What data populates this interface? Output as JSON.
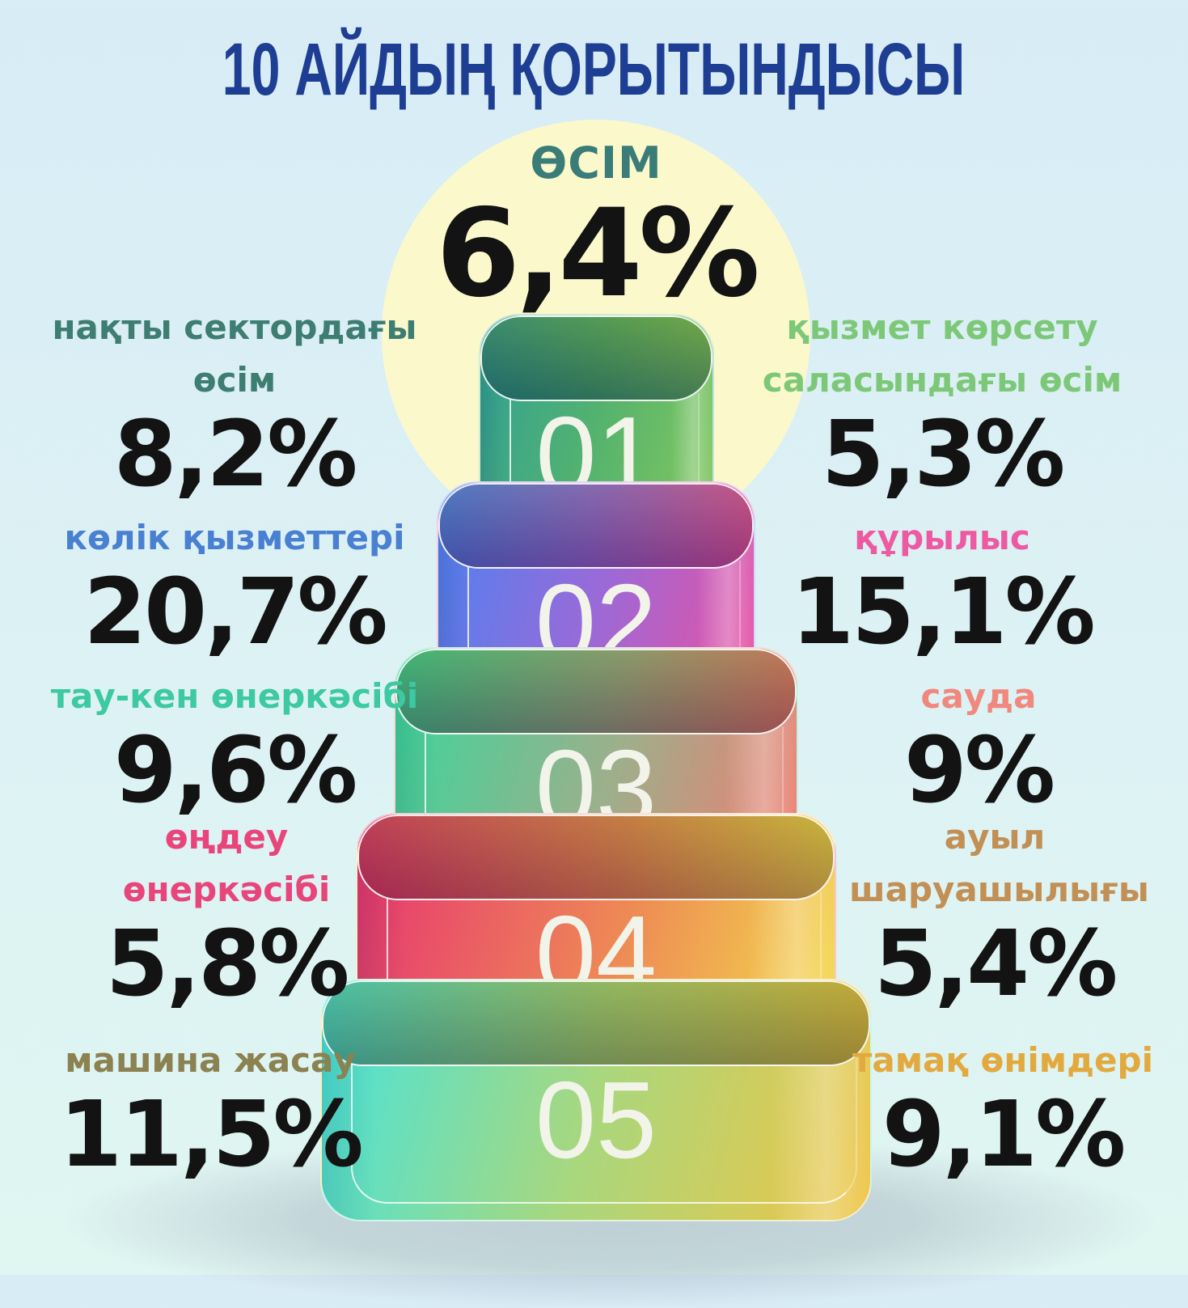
{
  "title": "10 АЙДЫҢ ҚОРЫТЫНДЫСЫ",
  "center_stat": {
    "label": "ӨСІМ",
    "value": "6,4%",
    "label_color": "#3A7D78"
  },
  "left_stats": [
    {
      "label": "нақты сектордағы өсім",
      "value": "8,2%",
      "color": "#3E7D72"
    },
    {
      "label": "көлік қызметтері",
      "value": "20,7%",
      "color": "#4A80D2"
    },
    {
      "label": "тау-кен өнеркәсібі",
      "value": "9,6%",
      "color": "#3DC9A1"
    },
    {
      "label": "өңдеу өнеркәсібі",
      "value": "5,8%",
      "color": "#E8457B"
    },
    {
      "label": "машина жасау",
      "value": "11,5%",
      "color": "#8B8151"
    }
  ],
  "right_stats": [
    {
      "label": "қызмет көрсету саласындағы өсім",
      "value": "5,3%",
      "color": "#7DC878"
    },
    {
      "label": "құрылыс",
      "value": "15,1%",
      "color": "#EE5AA2"
    },
    {
      "label": "сауда",
      "value": "9%",
      "color": "#F0887E"
    },
    {
      "label": "ауыл шаруашылығы",
      "value": "5,4%",
      "color": "#C28F55"
    },
    {
      "label": "тамақ өнімдері",
      "value": "9,1%",
      "color": "#E2A93E"
    }
  ],
  "tower": [
    {
      "number": "01",
      "colors": [
        "#2F9F97",
        "#86C95C"
      ]
    },
    {
      "number": "02",
      "colors": [
        "#4B82F2",
        "#EF4F9E"
      ]
    },
    {
      "number": "03",
      "colors": [
        "#38D79C",
        "#F27A6E"
      ]
    },
    {
      "number": "04",
      "colors": [
        "#E73372",
        "#F3DD4B"
      ]
    },
    {
      "number": "05",
      "colors": [
        "#45E4DE",
        "#F0C443"
      ]
    }
  ],
  "colors": {
    "title": "#1D3E92",
    "circle": "#FBF9CC",
    "value_text": "#131313",
    "background_top": "#D8ECF6",
    "background_bottom": "#DFF6F1"
  },
  "chart_data": {
    "type": "table",
    "title": "10 АЙДЫҢ ҚОРЫТЫНДЫСЫ",
    "unit": "%",
    "categories": [
      "ӨСІМ",
      "нақты сектордағы өсім",
      "қызмет көрсету саласындағы өсім",
      "көлік қызметтері",
      "құрылыс",
      "тау-кен өнеркәсібі",
      "сауда",
      "өңдеу өнеркәсібі",
      "ауыл шаруашылығы",
      "машина жасау",
      "тамақ өнімдері"
    ],
    "values": [
      6.4,
      8.2,
      5.3,
      20.7,
      15.1,
      9.6,
      9.0,
      5.8,
      5.4,
      11.5,
      9.1
    ]
  }
}
